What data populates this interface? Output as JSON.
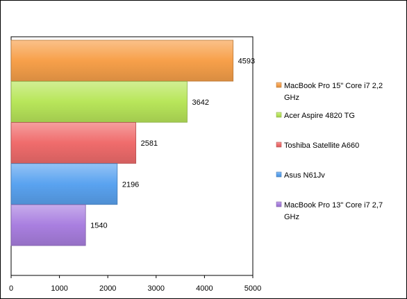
{
  "chart_data": {
    "type": "bar",
    "orientation": "horizontal",
    "stacked": false,
    "categories": [
      "MacBook Pro 15\" Core i7 2,2 GHz",
      "Acer Aspire  4820 TG",
      "Toshiba Satellite A660",
      "Asus N61Jv",
      "MacBook Pro 13\" Core i7 2,7 GHz"
    ],
    "series": [
      {
        "name": "MacBook Pro 15\" Core i7 2,2 GHz",
        "value": 4593,
        "value_label": "4593",
        "color": "#f7a04a",
        "legend_lines": [
          "MacBook Pro 15\" Core i7 2,2",
          "GHz"
        ]
      },
      {
        "name": "Acer Aspire  4820 TG",
        "value": 3642,
        "value_label": "3642",
        "color": "#b8e65a",
        "legend_lines": [
          "Acer Aspire  4820 TG"
        ]
      },
      {
        "name": "Toshiba Satellite A660",
        "value": 2581,
        "value_label": "2581",
        "color": "#f06c6c",
        "legend_lines": [
          "Toshiba Satellite A660"
        ]
      },
      {
        "name": "Asus N61Jv",
        "value": 2196,
        "value_label": "2196",
        "color": "#5aa3f0",
        "legend_lines": [
          "Asus N61Jv"
        ]
      },
      {
        "name": "MacBook Pro 13\" Core i7 2,7 GHz",
        "value": 1540,
        "value_label": "1540",
        "color": "#a97fe0",
        "legend_lines": [
          "MacBook Pro 13\" Core i7 2,7",
          "GHz"
        ]
      }
    ],
    "xlim": [
      0,
      5000
    ],
    "x_ticks": [
      0,
      1000,
      2000,
      3000,
      4000,
      5000
    ],
    "x_tick_labels": [
      "0",
      "1000",
      "2000",
      "3000",
      "4000",
      "5000"
    ],
    "grid": false,
    "legend_position": "right",
    "title": "",
    "xlabel": "",
    "ylabel": ""
  }
}
